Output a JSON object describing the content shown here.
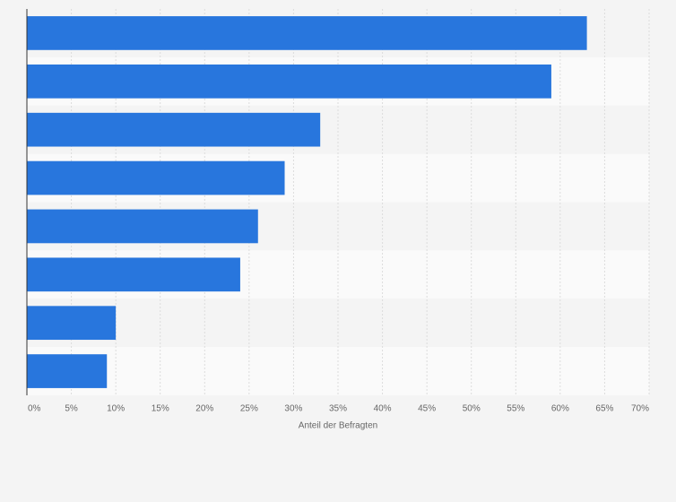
{
  "chart_data": {
    "type": "bar",
    "orientation": "horizontal",
    "categories": [
      null,
      null,
      null,
      null,
      null,
      null,
      null,
      null
    ],
    "values": [
      63,
      59,
      33,
      29,
      26,
      24,
      10,
      9
    ],
    "color": "#2876dd",
    "xlabel": "Anteil der Befragten",
    "xlim": [
      0,
      70
    ],
    "xticks": [
      {
        "value": 0,
        "label": "0%"
      },
      {
        "value": 5,
        "label": "5%"
      },
      {
        "value": 10,
        "label": "10%"
      },
      {
        "value": 15,
        "label": "15%"
      },
      {
        "value": 20,
        "label": "20%"
      },
      {
        "value": 25,
        "label": "25%"
      },
      {
        "value": 30,
        "label": "30%"
      },
      {
        "value": 35,
        "label": "35%"
      },
      {
        "value": 40,
        "label": "40%"
      },
      {
        "value": 45,
        "label": "45%"
      },
      {
        "value": 50,
        "label": "50%"
      },
      {
        "value": 55,
        "label": "55%"
      },
      {
        "value": 60,
        "label": "60%"
      },
      {
        "value": 65,
        "label": "65%"
      },
      {
        "value": 70,
        "label": "70%"
      }
    ],
    "grid": true
  }
}
